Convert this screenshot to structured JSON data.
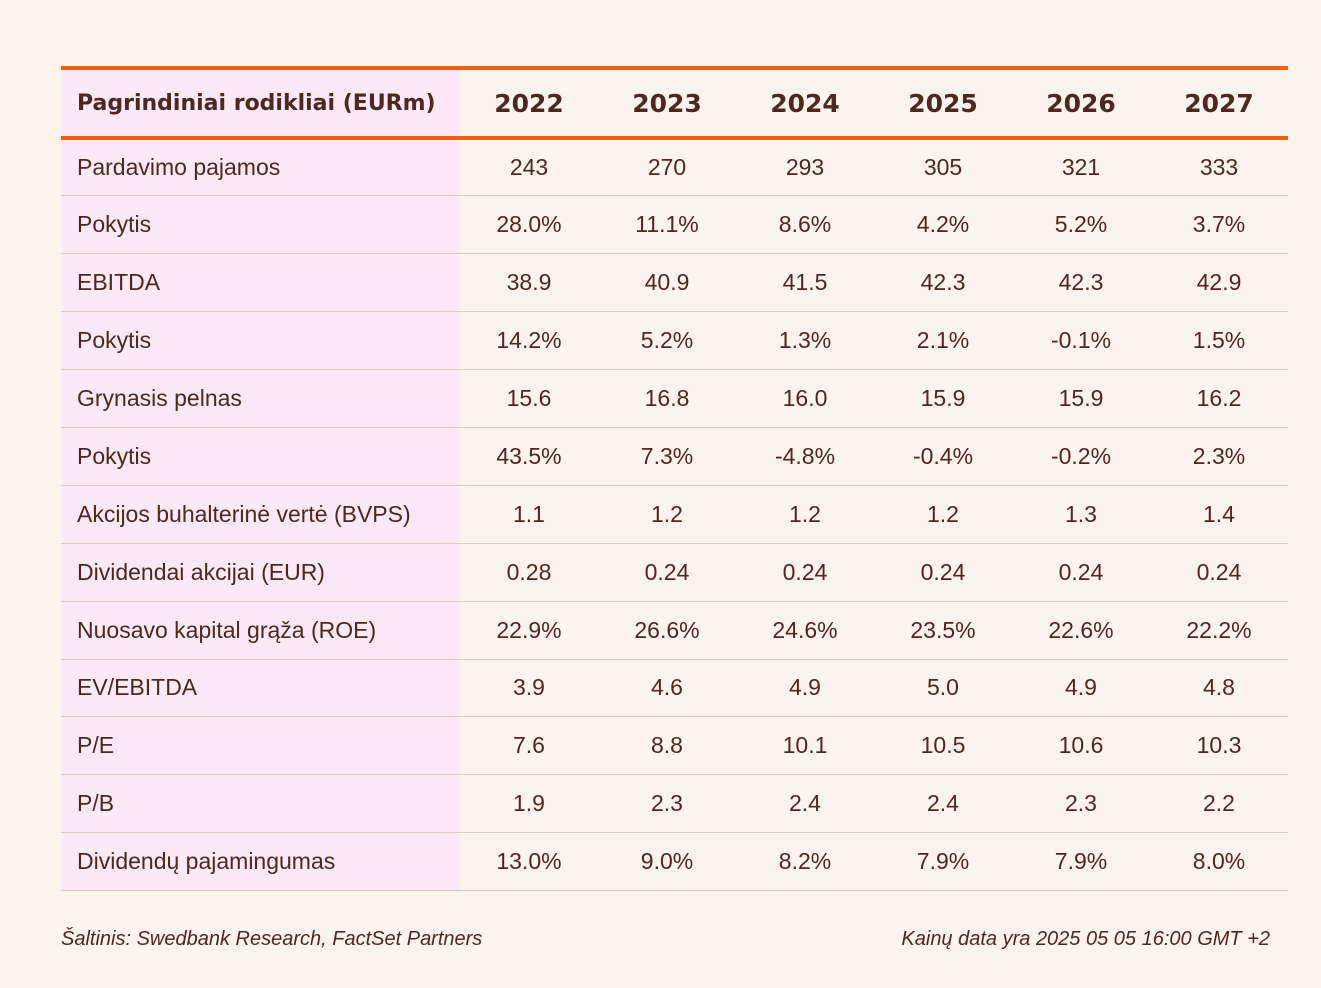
{
  "table": {
    "header_label": "Pagrindiniai rodikliai (EURm)",
    "years": [
      "2022",
      "2023",
      "2024",
      "2025",
      "2026",
      "2027"
    ],
    "rows": [
      {
        "label": "Pardavimo pajamos",
        "values": [
          "243",
          "270",
          "293",
          "305",
          "321",
          "333"
        ]
      },
      {
        "label": "Pokytis",
        "values": [
          "28.0%",
          "11.1%",
          "8.6%",
          "4.2%",
          "5.2%",
          "3.7%"
        ]
      },
      {
        "label": "EBITDA",
        "values": [
          "38.9",
          "40.9",
          "41.5",
          "42.3",
          "42.3",
          "42.9"
        ]
      },
      {
        "label": "Pokytis",
        "values": [
          "14.2%",
          "5.2%",
          "1.3%",
          "2.1%",
          "-0.1%",
          "1.5%"
        ]
      },
      {
        "label": "Grynasis pelnas",
        "values": [
          "15.6",
          "16.8",
          "16.0",
          "15.9",
          "15.9",
          "16.2"
        ]
      },
      {
        "label": "Pokytis",
        "values": [
          "43.5%",
          "7.3%",
          "-4.8%",
          "-0.4%",
          "-0.2%",
          "2.3%"
        ]
      },
      {
        "label": "Akcijos buhalterinė vertė (BVPS)",
        "values": [
          "1.1",
          "1.2",
          "1.2",
          "1.2",
          "1.3",
          "1.4"
        ]
      },
      {
        "label": "Dividendai akcijai (EUR)",
        "values": [
          "0.28",
          "0.24",
          "0.24",
          "0.24",
          "0.24",
          "0.24"
        ]
      },
      {
        "label": "Nuosavo kapital grąža (ROE)",
        "values": [
          "22.9%",
          "26.6%",
          "24.6%",
          "23.5%",
          "22.6%",
          "22.2%"
        ]
      },
      {
        "label": "EV/EBITDA",
        "values": [
          "3.9",
          "4.6",
          "4.9",
          "5.0",
          "4.9",
          "4.8"
        ]
      },
      {
        "label": "P/E",
        "values": [
          "7.6",
          "8.8",
          "10.1",
          "10.5",
          "10.6",
          "10.3"
        ]
      },
      {
        "label": "P/B",
        "values": [
          "1.9",
          "2.3",
          "2.4",
          "2.4",
          "2.3",
          "2.2"
        ]
      },
      {
        "label": "Dividendų pajamingumas",
        "values": [
          "13.0%",
          "9.0%",
          "8.2%",
          "7.9%",
          "7.9%",
          "8.0%"
        ]
      }
    ]
  },
  "footer": {
    "source": "Šaltinis: Swedbank Research, FactSet Partners",
    "price_date": "Kainų data yra 2025 05 05 16:00 GMT +2"
  },
  "colors": {
    "accent": "#f05f12",
    "label_bg": "#fde8f5",
    "page_bg": "#fcf3ec",
    "text": "#4d2821"
  }
}
